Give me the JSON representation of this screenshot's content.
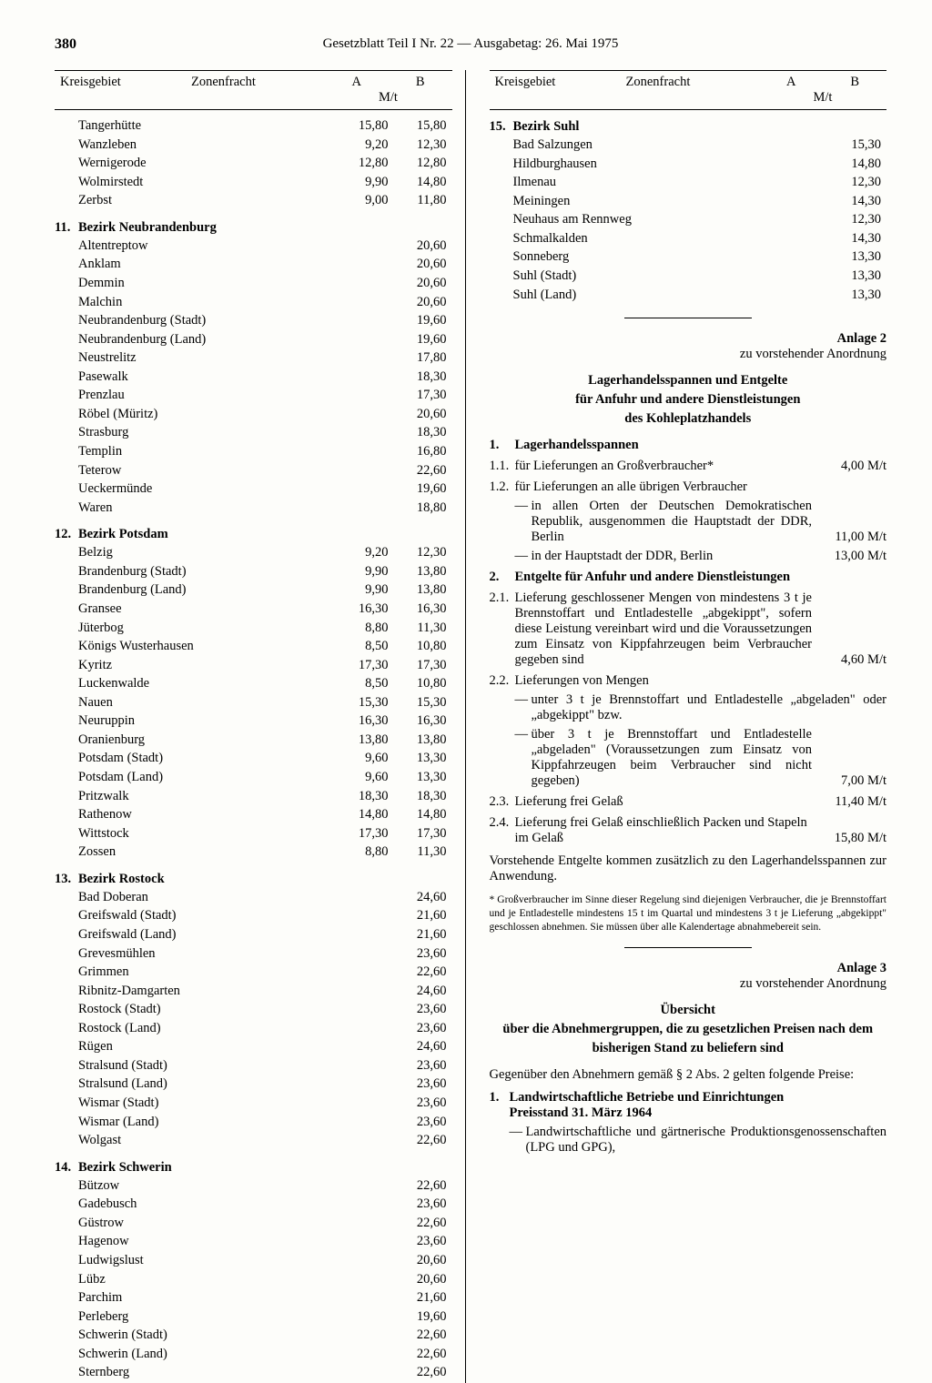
{
  "page_number": "380",
  "header_title": "Gesetzblatt Teil I Nr. 22 — Ausgabetag: 26. Mai 1975",
  "table_header": {
    "kreisgebiet": "Kreisgebiet",
    "zonenfracht": "Zonenfracht",
    "colA": "A",
    "colB": "B",
    "unit": "M/t"
  },
  "left": {
    "orphan_rows": [
      {
        "name": "Tangerhütte",
        "a": "15,80",
        "b": "15,80"
      },
      {
        "name": "Wanzleben",
        "a": "9,20",
        "b": "12,30"
      },
      {
        "name": "Wernigerode",
        "a": "12,80",
        "b": "12,80"
      },
      {
        "name": "Wolmirstedt",
        "a": "9,90",
        "b": "14,80"
      },
      {
        "name": "Zerbst",
        "a": "9,00",
        "b": "11,80"
      }
    ],
    "sections": [
      {
        "num": "11.",
        "title": "Bezirk Neubrandenburg",
        "rows": [
          {
            "name": "Altentreptow",
            "a": "",
            "b": "20,60"
          },
          {
            "name": "Anklam",
            "a": "",
            "b": "20,60"
          },
          {
            "name": "Demmin",
            "a": "",
            "b": "20,60"
          },
          {
            "name": "Malchin",
            "a": "",
            "b": "20,60"
          },
          {
            "name": "Neubrandenburg (Stadt)",
            "a": "",
            "b": "19,60"
          },
          {
            "name": "Neubrandenburg (Land)",
            "a": "",
            "b": "19,60"
          },
          {
            "name": "Neustrelitz",
            "a": "",
            "b": "17,80"
          },
          {
            "name": "Pasewalk",
            "a": "",
            "b": "18,30"
          },
          {
            "name": "Prenzlau",
            "a": "",
            "b": "17,30"
          },
          {
            "name": "Röbel (Müritz)",
            "a": "",
            "b": "20,60"
          },
          {
            "name": "Strasburg",
            "a": "",
            "b": "18,30"
          },
          {
            "name": "Templin",
            "a": "",
            "b": "16,80"
          },
          {
            "name": "Teterow",
            "a": "",
            "b": "22,60"
          },
          {
            "name": "Ueckermünde",
            "a": "",
            "b": "19,60"
          },
          {
            "name": "Waren",
            "a": "",
            "b": "18,80"
          }
        ]
      },
      {
        "num": "12.",
        "title": "Bezirk Potsdam",
        "rows": [
          {
            "name": "Belzig",
            "a": "9,20",
            "b": "12,30"
          },
          {
            "name": "Brandenburg (Stadt)",
            "a": "9,90",
            "b": "13,80"
          },
          {
            "name": "Brandenburg (Land)",
            "a": "9,90",
            "b": "13,80"
          },
          {
            "name": "Gransee",
            "a": "16,30",
            "b": "16,30"
          },
          {
            "name": "Jüterbog",
            "a": "8,80",
            "b": "11,30"
          },
          {
            "name": "Königs Wusterhausen",
            "a": "8,50",
            "b": "10,80"
          },
          {
            "name": "Kyritz",
            "a": "17,30",
            "b": "17,30"
          },
          {
            "name": "Luckenwalde",
            "a": "8,50",
            "b": "10,80"
          },
          {
            "name": "Nauen",
            "a": "15,30",
            "b": "15,30"
          },
          {
            "name": "Neuruppin",
            "a": "16,30",
            "b": "16,30"
          },
          {
            "name": "Oranienburg",
            "a": "13,80",
            "b": "13,80"
          },
          {
            "name": "Potsdam (Stadt)",
            "a": "9,60",
            "b": "13,30"
          },
          {
            "name": "Potsdam (Land)",
            "a": "9,60",
            "b": "13,30"
          },
          {
            "name": "Pritzwalk",
            "a": "18,30",
            "b": "18,30"
          },
          {
            "name": "Rathenow",
            "a": "14,80",
            "b": "14,80"
          },
          {
            "name": "Wittstock",
            "a": "17,30",
            "b": "17,30"
          },
          {
            "name": "Zossen",
            "a": "8,80",
            "b": "11,30"
          }
        ]
      },
      {
        "num": "13.",
        "title": "Bezirk Rostock",
        "rows": [
          {
            "name": "Bad Doberan",
            "a": "",
            "b": "24,60"
          },
          {
            "name": "Greifswald (Stadt)",
            "a": "",
            "b": "21,60"
          },
          {
            "name": "Greifswald (Land)",
            "a": "",
            "b": "21,60"
          },
          {
            "name": "Grevesmühlen",
            "a": "",
            "b": "23,60"
          },
          {
            "name": "Grimmen",
            "a": "",
            "b": "22,60"
          },
          {
            "name": "Ribnitz-Damgarten",
            "a": "",
            "b": "24,60"
          },
          {
            "name": "Rostock (Stadt)",
            "a": "",
            "b": "23,60"
          },
          {
            "name": "Rostock (Land)",
            "a": "",
            "b": "23,60"
          },
          {
            "name": "Rügen",
            "a": "",
            "b": "24,60"
          },
          {
            "name": "Stralsund (Stadt)",
            "a": "",
            "b": "23,60"
          },
          {
            "name": "Stralsund (Land)",
            "a": "",
            "b": "23,60"
          },
          {
            "name": "Wismar (Stadt)",
            "a": "",
            "b": "23,60"
          },
          {
            "name": "Wismar (Land)",
            "a": "",
            "b": "23,60"
          },
          {
            "name": "Wolgast",
            "a": "",
            "b": "22,60"
          }
        ]
      },
      {
        "num": "14.",
        "title": "Bezirk Schwerin",
        "rows": [
          {
            "name": "Bützow",
            "a": "",
            "b": "22,60"
          },
          {
            "name": "Gadebusch",
            "a": "",
            "b": "23,60"
          },
          {
            "name": "Güstrow",
            "a": "",
            "b": "22,60"
          },
          {
            "name": "Hagenow",
            "a": "",
            "b": "23,60"
          },
          {
            "name": "Ludwigslust",
            "a": "",
            "b": "20,60"
          },
          {
            "name": "Lübz",
            "a": "",
            "b": "20,60"
          },
          {
            "name": "Parchim",
            "a": "",
            "b": "21,60"
          },
          {
            "name": "Perleberg",
            "a": "",
            "b": "19,60"
          },
          {
            "name": "Schwerin (Stadt)",
            "a": "",
            "b": "22,60"
          },
          {
            "name": "Schwerin (Land)",
            "a": "",
            "b": "22,60"
          },
          {
            "name": "Sternberg",
            "a": "",
            "b": "22,60"
          }
        ]
      }
    ]
  },
  "right": {
    "section15": {
      "num": "15.",
      "title": "Bezirk Suhl",
      "rows": [
        {
          "name": "Bad Salzungen",
          "a": "",
          "b": "15,30"
        },
        {
          "name": "Hildburghausen",
          "a": "",
          "b": "14,80"
        },
        {
          "name": "Ilmenau",
          "a": "",
          "b": "12,30"
        },
        {
          "name": "Meiningen",
          "a": "",
          "b": "14,30"
        },
        {
          "name": "Neuhaus am Rennweg",
          "a": "",
          "b": "12,30"
        },
        {
          "name": "Schmalkalden",
          "a": "",
          "b": "14,30"
        },
        {
          "name": "Sonneberg",
          "a": "",
          "b": "13,30"
        },
        {
          "name": "Suhl (Stadt)",
          "a": "",
          "b": "13,30"
        },
        {
          "name": "Suhl (Land)",
          "a": "",
          "b": "13,30"
        }
      ]
    }
  },
  "anlage2": {
    "label": "Anlage 2",
    "sub": "zu vorstehender Anordnung",
    "title1": "Lagerhandelsspannen und Entgelte",
    "title2": "für Anfuhr und andere Dienstleistungen",
    "title3": "des Kohleplatzhandels",
    "s1_num": "1.",
    "s1_title": "Lagerhandelsspannen",
    "s11_num": "1.1.",
    "s11_text": "für Lieferungen an Großverbraucher*",
    "s11_price": "4,00 M/t",
    "s12_num": "1.2.",
    "s12_text": "für Lieferungen an alle übrigen Verbraucher",
    "s12a_text": "in allen Orten der Deutschen Demokratischen Republik, ausgenommen die Hauptstadt der DDR, Berlin",
    "s12a_price": "11,00 M/t",
    "s12b_text": "in der Hauptstadt der DDR, Berlin",
    "s12b_price": "13,00 M/t",
    "s2_num": "2.",
    "s2_title": "Entgelte für Anfuhr und andere Dienstleistungen",
    "s21_num": "2.1.",
    "s21_text": "Lieferung geschlossener Mengen von mindestens 3 t je Brennstoffart und Entladestelle „abgekippt\", sofern diese Leistung vereinbart wird und die Voraussetzungen zum Einsatz von Kippfahrzeugen beim Verbraucher gegeben sind",
    "s21_price": "4,60 M/t",
    "s22_num": "2.2.",
    "s22_text": "Lieferungen von Mengen",
    "s22a_text": "unter 3 t je Brennstoffart und Entladestelle „abgeladen\" oder „abgekippt\" bzw.",
    "s22b_text": "über 3 t je Brennstoffart und Entladestelle „abgeladen\" (Voraussetzungen zum Einsatz von Kippfahrzeugen beim Verbraucher sind nicht gegeben)",
    "s22b_price": "7,00 M/t",
    "s23_num": "2.3.",
    "s23_text": "Lieferung frei Gelaß",
    "s23_price": "11,40 M/t",
    "s24_num": "2.4.",
    "s24_text": "Lieferung frei Gelaß einschließlich Packen und Stapeln im Gelaß",
    "s24_price": "15,80 M/t",
    "closing": "Vorstehende Entgelte kommen zusätzlich zu den Lagerhandelsspannen zur Anwendung.",
    "footnote": "* Großverbraucher im Sinne dieser Regelung sind diejenigen Verbraucher, die je Brennstoffart und je Entladestelle mindestens 15 t im Quartal und mindestens 3 t je Lieferung „abgekippt\" geschlossen abnehmen. Sie müssen über alle Kalendertage abnahmebereit sein."
  },
  "anlage3": {
    "label": "Anlage 3",
    "sub": "zu vorstehender Anordnung",
    "title1": "Übersicht",
    "title2": "über die Abnehmergruppen, die zu gesetzlichen Preisen nach dem bisherigen Stand zu beliefern sind",
    "intro": "Gegenüber den Abnehmern gemäß § 2 Abs. 2 gelten folgende Preise:",
    "s1_num": "1.",
    "s1_line1": "Landwirtschaftliche Betriebe und Einrichtungen",
    "s1_line2": "Preisstand 31. März 1964",
    "dash1": "Landwirtschaftliche und gärtnerische Produktionsgenossenschaften (LPG und GPG),"
  }
}
